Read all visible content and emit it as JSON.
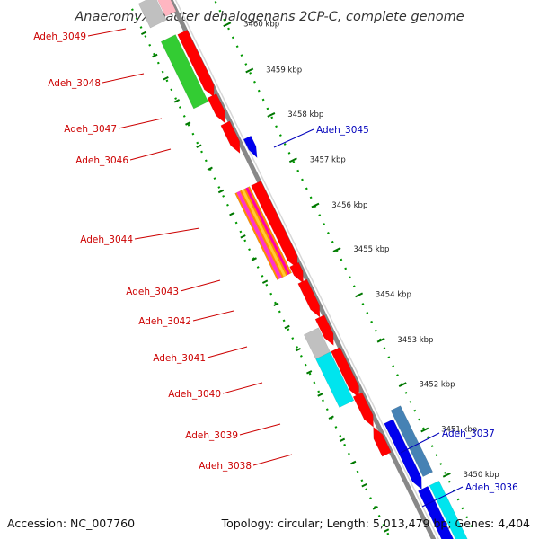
{
  "title": "Anaeromyxobacter dehalogenans 2CP-C, complete genome",
  "footer": {
    "accession": "Accession: NC_007760",
    "summary": "Topology: circular; Length: 5,013,479 bp; Genes: 4,404"
  },
  "scale_labels": [
    "3460 kbp",
    "3459 kbp",
    "3458 kbp",
    "3457 kbp",
    "3456 kbp",
    "3455 kbp",
    "3454 kbp",
    "3453 kbp",
    "3452 kbp",
    "3451 kbp",
    "3450 kbp"
  ],
  "genes_left": [
    "Adeh_3049",
    "Adeh_3048",
    "Adeh_3047",
    "Adeh_3046",
    "Adeh_3044",
    "Adeh_3043",
    "Adeh_3042",
    "Adeh_3041",
    "Adeh_3040",
    "Adeh_3039",
    "Adeh_3038"
  ],
  "genes_right": [
    "Adeh_3045",
    "Adeh_3037",
    "Adeh_3036"
  ],
  "colors": {
    "left_label": "#cc0000",
    "right_label": "#0000bb",
    "red_gene": "#ff0000",
    "green_gene": "#33cc33",
    "blue_gene": "#0000ee",
    "steel_gene": "#4682b4",
    "cyan_gene": "#00e5ee",
    "gray_gene": "#c0c0c0",
    "pink_gene": "#ffb6c1",
    "tick_green": "#007700",
    "backbone": "#888888"
  }
}
